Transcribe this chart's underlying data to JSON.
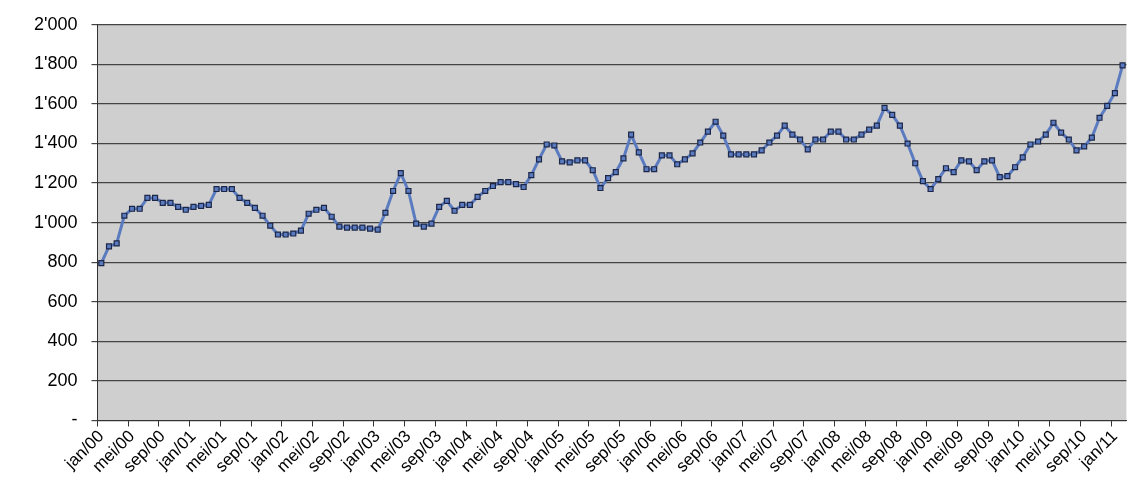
{
  "chart_data": {
    "type": "line",
    "categories": [
      "jan/00",
      null,
      null,
      null,
      "mei/00",
      null,
      null,
      null,
      "sep/00",
      null,
      null,
      null,
      "jan/01",
      null,
      null,
      null,
      "mei/01",
      null,
      null,
      null,
      "sep/01",
      null,
      null,
      null,
      "jan/02",
      null,
      null,
      null,
      "mei/02",
      null,
      null,
      null,
      "sep/02",
      null,
      null,
      null,
      "jan/03",
      null,
      null,
      null,
      "mei/03",
      null,
      null,
      null,
      "sep/03",
      null,
      null,
      null,
      "jan/04",
      null,
      null,
      null,
      "mei/04",
      null,
      null,
      null,
      "sep/04",
      null,
      null,
      null,
      "jan/05",
      null,
      null,
      null,
      "mei/05",
      null,
      null,
      null,
      "sep/05",
      null,
      null,
      null,
      "jan/06",
      null,
      null,
      null,
      "mei/06",
      null,
      null,
      null,
      "sep/06",
      null,
      null,
      null,
      "jan/07",
      null,
      null,
      null,
      "mei/07",
      null,
      null,
      null,
      "sep/07",
      null,
      null,
      null,
      "jan/08",
      null,
      null,
      null,
      "mei/08",
      null,
      null,
      null,
      "sep/08",
      null,
      null,
      null,
      "jan/09",
      null,
      null,
      null,
      "mei/09",
      null,
      null,
      null,
      "sep/09",
      null,
      null,
      null,
      "jan/10",
      null,
      null,
      null,
      "mei/10",
      null,
      null,
      null,
      "sep/10",
      null,
      null,
      null,
      "jan/11",
      null
    ],
    "series": [
      {
        "color": "#5b7bc0",
        "values": [
          795,
          880,
          895,
          1035,
          1070,
          1070,
          1125,
          1125,
          1100,
          1100,
          1080,
          1065,
          1080,
          1085,
          1090,
          1170,
          1170,
          1170,
          1125,
          1100,
          1075,
          1035,
          985,
          940,
          940,
          945,
          960,
          1045,
          1065,
          1075,
          1030,
          980,
          975,
          975,
          975,
          970,
          965,
          1050,
          1160,
          1250,
          1160,
          995,
          980,
          995,
          1080,
          1110,
          1060,
          1090,
          1090,
          1130,
          1160,
          1185,
          1205,
          1205,
          1195,
          1180,
          1240,
          1320,
          1395,
          1390,
          1310,
          1305,
          1315,
          1315,
          1265,
          1175,
          1225,
          1255,
          1325,
          1445,
          1355,
          1270,
          1270,
          1340,
          1340,
          1295,
          1320,
          1350,
          1405,
          1460,
          1510,
          1440,
          1345,
          1345,
          1345,
          1345,
          1365,
          1405,
          1440,
          1490,
          1445,
          1420,
          1370,
          1420,
          1420,
          1460,
          1460,
          1420,
          1420,
          1445,
          1470,
          1490,
          1580,
          1545,
          1490,
          1400,
          1300,
          1210,
          1170,
          1220,
          1275,
          1255,
          1315,
          1310,
          1265,
          1310,
          1315,
          1230,
          1235,
          1280,
          1330,
          1395,
          1410,
          1445,
          1505,
          1455,
          1420,
          1365,
          1385,
          1430,
          1530,
          1590,
          1655,
          1795
        ]
      }
    ],
    "ylim": [
      0,
      2000
    ],
    "yticks": [
      {
        "value": 0,
        "label": "-"
      },
      200,
      400,
      600,
      800,
      {
        "value": 1000,
        "label": "1'000"
      },
      {
        "value": 1200,
        "label": "1'200"
      },
      {
        "value": 1400,
        "label": "1'400"
      },
      {
        "value": 1600,
        "label": "1'600"
      },
      {
        "value": 1800,
        "label": "1'800"
      },
      {
        "value": 2000,
        "label": "2'000"
      }
    ],
    "grid": "y",
    "legend": false,
    "marker": "square",
    "line_style": "solid"
  }
}
